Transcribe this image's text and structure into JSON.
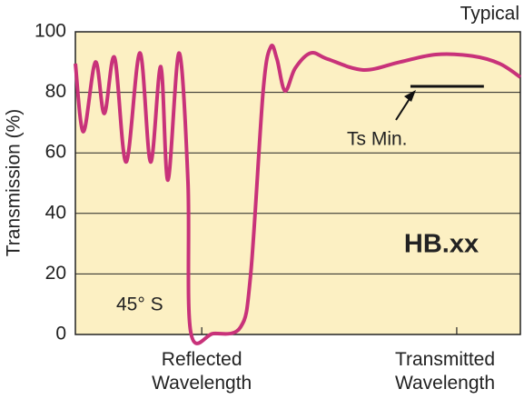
{
  "chart_data": {
    "type": "line",
    "corner_label": "Typical",
    "ylabel": "Transmission (%)",
    "x": [
      0,
      1.8,
      4.5,
      6.5,
      8.8,
      11.4,
      14.5,
      16.9,
      19.2,
      20.8,
      23.3,
      25.3,
      25.9,
      31.0,
      37.1,
      39.4,
      42.2,
      43.9,
      45.3,
      47.1,
      49.4,
      52.9,
      56.7,
      64.7,
      72.9,
      81.0,
      89.2,
      95.3,
      100
    ],
    "values": [
      89.5,
      67,
      90,
      73,
      91.5,
      57,
      93,
      57,
      88.5,
      51,
      93,
      50.5,
      1,
      0.3,
      2.4,
      20,
      80.5,
      95,
      91,
      80.5,
      88,
      93,
      91,
      87.4,
      90,
      92.5,
      92,
      89.5,
      85
    ],
    "color": "#c8327a",
    "xlim": [
      0,
      100
    ],
    "xticks": [
      {
        "value": 28.4,
        "label": "Reflected Wavelength"
      },
      {
        "value": 85.7,
        "label": "Transmitted Wavelength"
      }
    ],
    "ylim": [
      0,
      100
    ],
    "yticks": [
      0,
      20,
      40,
      60,
      80,
      100
    ],
    "grid": true,
    "ts_min": {
      "label": "Ts Min.",
      "value": 82,
      "x": [
        75.3,
        91.8
      ]
    },
    "annotations": [
      "HB.xx",
      "45° S"
    ]
  }
}
